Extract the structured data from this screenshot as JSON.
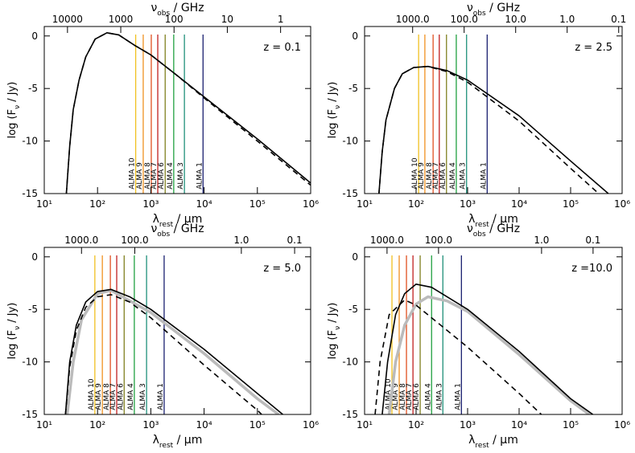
{
  "chart_data": [
    {
      "type": "line",
      "xlog": true,
      "xlim": [
        10,
        1000000
      ],
      "ylim": [
        -15,
        0.9
      ],
      "xticks": [
        {
          "value": 10,
          "label": "10¹"
        },
        {
          "value": 100,
          "label": "10²"
        },
        {
          "value": 1000,
          "label": "10³"
        },
        {
          "value": 10000,
          "label": "10⁴"
        },
        {
          "value": 100000,
          "label": "10⁵"
        },
        {
          "value": 1000000,
          "label": "10⁶"
        }
      ],
      "yticks": [
        0,
        -5,
        -10,
        -15
      ],
      "x2lim": [
        27272.7,
        0.272727
      ],
      "x2ticks": [
        10000,
        1000,
        100,
        10,
        1
      ],
      "xlabel": [
        "λ",
        "rest",
        " / μm"
      ],
      "ylabel": [
        "log (F",
        "ν",
        " / Jy)"
      ],
      "x2label": [
        "ν",
        "obs",
        " / GHz"
      ],
      "annotation": "z = 0.1",
      "series": [
        {
          "color": "#000000",
          "style": "dashed",
          "x": [
            26,
            30,
            35,
            45,
            60,
            90,
            150,
            250,
            500,
            1000,
            3000,
            10000,
            100000,
            1000000
          ],
          "values": [
            -15,
            -10.5,
            -7,
            -4.2,
            -2,
            -0.3,
            0.3,
            0.1,
            -0.9,
            -1.8,
            -3.7,
            -5.9,
            -10.0,
            -14.2
          ]
        },
        {
          "color": "#000000",
          "style": "solid",
          "x": [
            26,
            30,
            35,
            45,
            60,
            90,
            150,
            250,
            500,
            1000,
            3000,
            10000,
            100000,
            1000000
          ],
          "values": [
            -15,
            -10.5,
            -7,
            -4.2,
            -2,
            -0.3,
            0.3,
            0.1,
            -0.9,
            -1.8,
            -3.7,
            -5.8,
            -9.8,
            -14.0
          ]
        }
      ],
      "vlines": [
        {
          "name": "ALMA 10",
          "color": "#f0c020",
          "x": 520
        },
        {
          "name": "ALMA 9",
          "color": "#f09020",
          "x": 720
        },
        {
          "name": "ALMA 8",
          "color": "#e05020",
          "x": 1020
        },
        {
          "name": "ALMA 7",
          "color": "#c02020",
          "x": 1350
        },
        {
          "name": "ALMA 6",
          "color": "#808020",
          "x": 1860
        },
        {
          "name": "ALMA 4",
          "color": "#20a040",
          "x": 2690
        },
        {
          "name": "ALMA 3",
          "color": "#20907a",
          "x": 4270
        },
        {
          "name": "ALMA 1",
          "color": "#1a2070",
          "x": 9550
        }
      ]
    },
    {
      "type": "line",
      "xlog": true,
      "xlim": [
        10,
        1000000
      ],
      "ylim": [
        -15,
        0.9
      ],
      "xticks": [
        {
          "value": 10,
          "label": "10¹"
        },
        {
          "value": 100,
          "label": "10²"
        },
        {
          "value": 1000,
          "label": "10³"
        },
        {
          "value": 10000,
          "label": "10⁴"
        },
        {
          "value": 100000,
          "label": "10⁵"
        },
        {
          "value": 1000000,
          "label": "10⁶"
        }
      ],
      "yticks": [
        0,
        -5,
        -10,
        -15
      ],
      "x2lim": [
        8571.4,
        0.085714
      ],
      "x2ticks": [
        {
          "value": 1000,
          "label": "1000.0"
        },
        {
          "value": 100,
          "label": "100.0"
        },
        {
          "value": 10,
          "label": "10.0"
        },
        {
          "value": 1,
          "label": "1.0"
        },
        0.1
      ],
      "xlabel": [
        "λ",
        "rest",
        " / μm"
      ],
      "ylabel": [
        "log (F",
        "ν",
        " / Jy)"
      ],
      "x2label": [
        "ν",
        "obs",
        " / GHz"
      ],
      "annotation": "z = 2.5",
      "series": [
        {
          "color": "#000000",
          "style": "dashed",
          "x": [
            19,
            22,
            26,
            38,
            54,
            90,
            170,
            400,
            1000,
            10000,
            100000,
            350000
          ],
          "values": [
            -15,
            -11,
            -8,
            -5,
            -3.6,
            -3.0,
            -2.9,
            -3.4,
            -4.4,
            -8.1,
            -12.6,
            -15
          ]
        },
        {
          "color": "#000000",
          "style": "solid",
          "x": [
            19,
            22,
            26,
            38,
            54,
            90,
            170,
            400,
            1000,
            10000,
            100000,
            540000
          ],
          "values": [
            -15,
            -11,
            -8,
            -5,
            -3.6,
            -3.0,
            -2.9,
            -3.3,
            -4.2,
            -7.6,
            -11.9,
            -15
          ]
        }
      ],
      "vlines": [
        {
          "name": "ALMA 10",
          "color": "#f0c020",
          "x": 112
        },
        {
          "name": "ALMA 9",
          "color": "#f09020",
          "x": 148
        },
        {
          "name": "ALMA 8",
          "color": "#e05020",
          "x": 214
        },
        {
          "name": "ALMA 7",
          "color": "#c02020",
          "x": 282
        },
        {
          "name": "ALMA 6",
          "color": "#808020",
          "x": 389
        },
        {
          "name": "ALMA 4",
          "color": "#20a040",
          "x": 603
        },
        {
          "name": "ALMA 3",
          "color": "#20907a",
          "x": 955
        },
        {
          "name": "ALMA 1",
          "color": "#1a2070",
          "x": 2400
        }
      ]
    },
    {
      "type": "line",
      "xlog": true,
      "xlim": [
        10,
        1000000
      ],
      "ylim": [
        -15,
        0.9
      ],
      "xticks": [
        {
          "value": 10,
          "label": "10¹"
        },
        {
          "value": 100,
          "label": "10²"
        },
        {
          "value": 1000,
          "label": "10³"
        },
        {
          "value": 10000,
          "label": "10⁴"
        },
        {
          "value": 100000,
          "label": "10⁵"
        },
        {
          "value": 1000000,
          "label": "10⁶"
        }
      ],
      "yticks": [
        0,
        -5,
        -10,
        -15
      ],
      "x2lim": [
        5000,
        0.05
      ],
      "x2ticks": [
        {
          "value": 1000,
          "label": "1000.0"
        },
        {
          "value": 100,
          "label": "100.0"
        },
        {
          "value": 1,
          "label": "1.0"
        },
        0.1
      ],
      "xlabel": [
        "λ",
        "rest",
        " / μm"
      ],
      "ylabel": [
        "log (F",
        "ν",
        " / Jy)"
      ],
      "x2label": [
        "ν",
        "obs",
        " / GHz"
      ],
      "annotation": "z = 5.0",
      "series": [
        {
          "color": "#bbbbbb",
          "style": "thick",
          "x": [
            27,
            35,
            50,
            100,
            180,
            1000,
            10000,
            100000,
            250000
          ],
          "values": [
            -15,
            -10,
            -6,
            -3.5,
            -3.2,
            -5.3,
            -9.2,
            -13.5,
            -15
          ]
        },
        {
          "color": "#000000",
          "style": "dashed",
          "x": [
            25,
            30,
            40,
            60,
            100,
            180,
            400,
            1000,
            10000,
            100000,
            120000
          ],
          "values": [
            -15,
            -10.5,
            -7,
            -4.8,
            -3.8,
            -3.6,
            -4.3,
            -5.8,
            -10.3,
            -14.6,
            -15
          ]
        },
        {
          "color": "#000000",
          "style": "solid",
          "x": [
            25,
            30,
            40,
            60,
            100,
            180,
            400,
            1000,
            10000,
            100000,
            300000
          ],
          "values": [
            -15,
            -10,
            -6.5,
            -4.3,
            -3.3,
            -3.1,
            -3.8,
            -5.0,
            -8.8,
            -13.0,
            -15
          ]
        }
      ],
      "vlines": [
        {
          "name": "ALMA 10",
          "color": "#f0c020",
          "x": 89
        },
        {
          "name": "ALMA 9",
          "color": "#f09020",
          "x": 123
        },
        {
          "name": "ALMA 8",
          "color": "#e05020",
          "x": 174
        },
        {
          "name": "ALMA 7",
          "color": "#c02020",
          "x": 229
        },
        {
          "name": "ALMA 6",
          "color": "#808020",
          "x": 316
        },
        {
          "name": "ALMA 4",
          "color": "#20a040",
          "x": 490
        },
        {
          "name": "ALMA 3",
          "color": "#20907a",
          "x": 832
        },
        {
          "name": "ALMA 1",
          "color": "#1a2070",
          "x": 1778
        }
      ]
    },
    {
      "type": "line",
      "xlog": true,
      "xlim": [
        10,
        1000000
      ],
      "ylim": [
        -15,
        0.9
      ],
      "xticks": [
        {
          "value": 10,
          "label": "10¹"
        },
        {
          "value": 100,
          "label": "10²"
        },
        {
          "value": 1000,
          "label": "10³"
        },
        {
          "value": 10000,
          "label": "10⁴"
        },
        {
          "value": 100000,
          "label": "10⁵"
        },
        {
          "value": 1000000,
          "label": "10⁶"
        }
      ],
      "yticks": [
        0,
        -5,
        -10,
        -15
      ],
      "x2lim": [
        2727.3,
        0.027273
      ],
      "x2ticks": [
        {
          "value": 1000,
          "label": "1000.0"
        },
        {
          "value": 100,
          "label": "100.0"
        },
        {
          "value": 1,
          "label": "1.0"
        },
        0.1
      ],
      "xlabel": [
        "λ",
        "rest",
        " / μm"
      ],
      "ylabel": [
        "log (F",
        "ν",
        " / Jy)"
      ],
      "x2label": [
        "ν",
        "obs",
        " / GHz"
      ],
      "annotation": "z =10.0",
      "series": [
        {
          "color": "#bbbbbb",
          "style": "thick",
          "x": [
            30,
            40,
            60,
            100,
            170,
            400,
            1000,
            10000,
            100000,
            230000
          ],
          "values": [
            -15,
            -10,
            -6.5,
            -4.5,
            -3.8,
            -4.2,
            -5.2,
            -9.3,
            -13.7,
            -15
          ]
        },
        {
          "color": "#000000",
          "style": "dashed",
          "x": [
            16,
            20,
            30,
            60,
            100,
            300,
            1000,
            10000,
            27000
          ],
          "values": [
            -15,
            -10,
            -5.5,
            -4.1,
            -4.6,
            -6.5,
            -8.6,
            -13,
            -15
          ]
        },
        {
          "color": "#000000",
          "style": "solid",
          "x": [
            22,
            28,
            40,
            60,
            100,
            200,
            1000,
            10000,
            100000,
            270000
          ],
          "values": [
            -15,
            -10,
            -5.5,
            -3.5,
            -2.6,
            -2.9,
            -5.0,
            -9.0,
            -13.5,
            -15
          ]
        }
      ],
      "vlines": [
        {
          "name": "ALMA 10",
          "color": "#f0c020",
          "x": 34
        },
        {
          "name": "ALMA 9",
          "color": "#f09020",
          "x": 47
        },
        {
          "name": "ALMA 8",
          "color": "#e05020",
          "x": 65
        },
        {
          "name": "ALMA 7",
          "color": "#c02020",
          "x": 87
        },
        {
          "name": "ALMA 6",
          "color": "#808020",
          "x": 120
        },
        {
          "name": "ALMA 4",
          "color": "#20a040",
          "x": 200
        },
        {
          "name": "ALMA 3",
          "color": "#20907a",
          "x": 331
        },
        {
          "name": "ALMA 1",
          "color": "#1a2070",
          "x": 759
        }
      ]
    }
  ]
}
